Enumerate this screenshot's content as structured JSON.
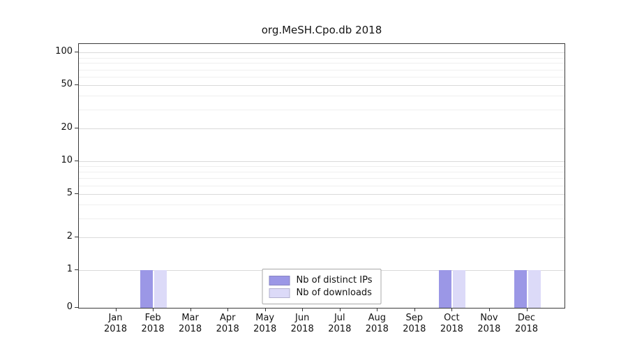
{
  "chart_data": {
    "type": "bar",
    "title": "org.MeSH.Cpo.db 2018",
    "categories": [
      "Jan",
      "Feb",
      "Mar",
      "Apr",
      "May",
      "Jun",
      "Jul",
      "Aug",
      "Sep",
      "Oct",
      "Nov",
      "Dec"
    ],
    "year": "2018",
    "series": [
      {
        "name": "Nb of distinct IPs",
        "color": "#9b97e6",
        "values": [
          0,
          1,
          0,
          0,
          0,
          0,
          0,
          0,
          0,
          1,
          0,
          1
        ]
      },
      {
        "name": "Nb of downloads",
        "color": "#dcdaf8",
        "values": [
          0,
          1,
          0,
          0,
          0,
          0,
          0,
          0,
          0,
          1,
          0,
          1
        ]
      }
    ],
    "y_ticks": [
      0,
      1,
      2,
      5,
      10,
      20,
      50,
      100
    ],
    "y_minor_gridlines": [
      1,
      2,
      3,
      4,
      5,
      6,
      7,
      8,
      9,
      10,
      20,
      30,
      40,
      50,
      60,
      70,
      80,
      90,
      100
    ],
    "y_scale": "log",
    "ylim_top": 120,
    "grid": true,
    "legend_position": "bottom-center"
  }
}
